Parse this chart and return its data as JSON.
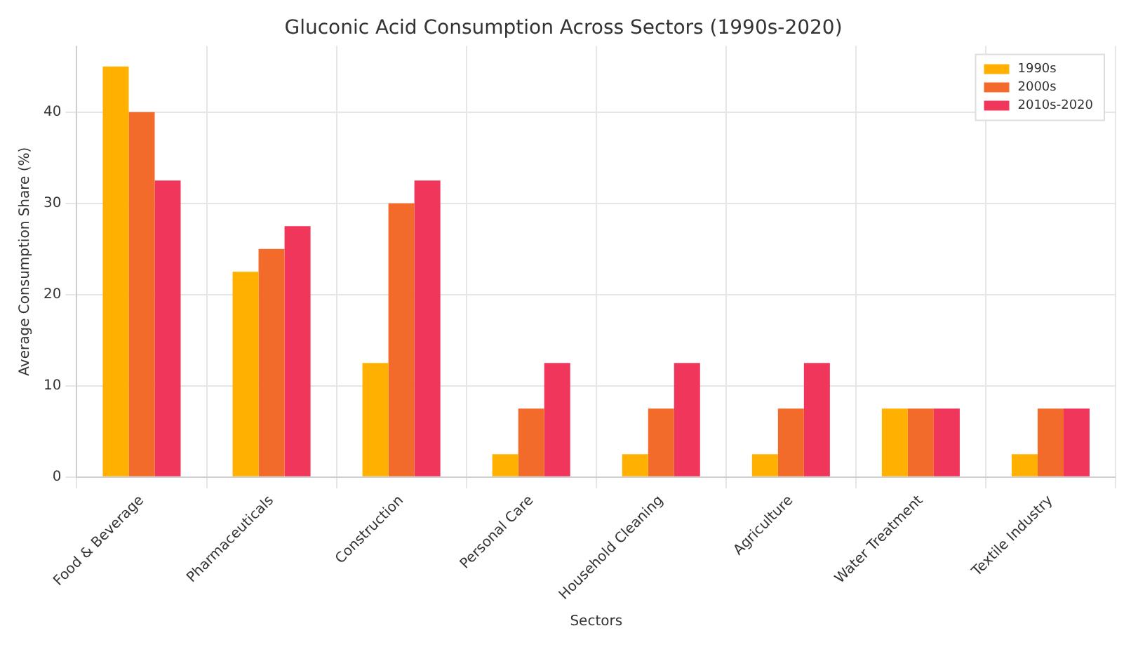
{
  "chart_data": {
    "type": "bar",
    "title": "Gluconic Acid Consumption Across Sectors (1990s-2020)",
    "xlabel": "Sectors",
    "ylabel": "Average Consumption Share (%)",
    "categories": [
      "Food & Beverage",
      "Pharmaceuticals",
      "Construction",
      "Personal Care",
      "Household Cleaning",
      "Agriculture",
      "Water Treatment",
      "Textile Industry"
    ],
    "series": [
      {
        "name": "1990s",
        "color": "#ffb000",
        "values": [
          45,
          22.5,
          12.5,
          2.5,
          2.5,
          2.5,
          7.5,
          2.5
        ]
      },
      {
        "name": "2000s",
        "color": "#f26b2a",
        "values": [
          40,
          25,
          30,
          7.5,
          7.5,
          7.5,
          7.5,
          7.5
        ]
      },
      {
        "name": "2010s-2020",
        "color": "#f0365a",
        "values": [
          32.5,
          27.5,
          32.5,
          12.5,
          12.5,
          12.5,
          7.5,
          7.5
        ]
      }
    ],
    "ylim": [
      0,
      47.25
    ],
    "yticks": [
      0,
      10,
      20,
      30,
      40
    ],
    "grid": true,
    "legend": "top right"
  }
}
